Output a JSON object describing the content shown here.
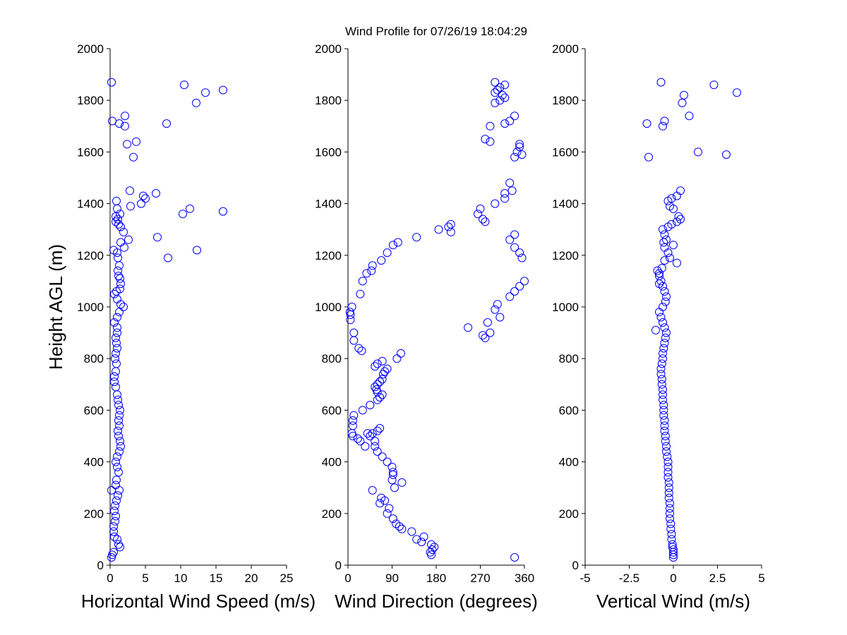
{
  "title": "Wind Profile for  07/26/19 18:04:29",
  "shared_ylabel": "Height AGL (m)",
  "marker_color": "#0000ff",
  "chart_data": [
    {
      "type": "scatter",
      "xlabel": "Horizontal Wind Speed (m/s)",
      "ylabel": "Height AGL (m)",
      "xlim": [
        0,
        25
      ],
      "ylim": [
        0,
        2000
      ],
      "xticks": [
        0,
        5,
        10,
        15,
        20,
        25
      ],
      "xtick_labels": [
        "0",
        "5",
        "10",
        "15",
        "20",
        "25"
      ],
      "yticks": [
        0,
        200,
        400,
        600,
        800,
        1000,
        1200,
        1400,
        1600,
        1800,
        2000
      ],
      "ytick_labels": [
        "0",
        "200",
        "400",
        "600",
        "800",
        "1000",
        "1200",
        "1400",
        "1600",
        "1800",
        "2000"
      ],
      "grid": false,
      "x": [
        0.2,
        0.3,
        0.5,
        1.4,
        1.2,
        1.0,
        0.6,
        0.5,
        0.5,
        0.7,
        0.8,
        0.6,
        0.7,
        0.9,
        1.1,
        1.3,
        0.8,
        0.2,
        0.9,
        1.2,
        1.0,
        0.8,
        1.0,
        1.3,
        1.5,
        1.4,
        1.2,
        1.1,
        1.3,
        1.2,
        1.3,
        1.4,
        1.2,
        1.1,
        1.0,
        0.8,
        0.6,
        0.6,
        0.8,
        0.9,
        0.7,
        0.8,
        1.0,
        0.9,
        0.8,
        1.0,
        1.0,
        0.6,
        1.0,
        1.3,
        1.9,
        1.5,
        1.0,
        0.6,
        0.9,
        1.4,
        1.5,
        1.4,
        1.2,
        1.1,
        1.3,
        1.1,
        1.0,
        0.5,
        2.0,
        1.5,
        2.6,
        6.7,
        1.9,
        1.5,
        1.2,
        0.8,
        1.1,
        0.8,
        1.4,
        1.0,
        2.9,
        4.4,
        5.0,
        4.7,
        6.5,
        2.8,
        0.9,
        2.4,
        3.7,
        2.1,
        3.3,
        8.0,
        1.3,
        0.3,
        2.1,
        12.2,
        13.5,
        16.0,
        10.5,
        0.2,
        8.2,
        12.3,
        10.3,
        16.0,
        11.3
      ],
      "y": [
        30,
        40,
        50,
        70,
        80,
        100,
        110,
        130,
        150,
        170,
        190,
        210,
        230,
        250,
        270,
        290,
        310,
        290,
        330,
        360,
        380,
        400,
        420,
        440,
        460,
        480,
        500,
        520,
        540,
        560,
        580,
        600,
        620,
        640,
        660,
        690,
        710,
        730,
        750,
        780,
        800,
        820,
        840,
        860,
        880,
        900,
        920,
        940,
        960,
        980,
        1000,
        1010,
        1030,
        1050,
        1060,
        1070,
        1090,
        1110,
        1120,
        1140,
        1160,
        1190,
        1210,
        1220,
        1230,
        1250,
        1260,
        1270,
        1290,
        1310,
        1320,
        1330,
        1340,
        1350,
        1360,
        1380,
        1390,
        1400,
        1420,
        1430,
        1440,
        1450,
        1410,
        1630,
        1640,
        1740,
        1580,
        1710,
        1710,
        1720,
        1700,
        1790,
        1830,
        1840,
        1860,
        1870,
        1190,
        1220,
        1360,
        1370,
        1380
      ]
    },
    {
      "type": "scatter",
      "xlabel": "Wind Direction (degrees)",
      "ylabel": "",
      "xlim": [
        0,
        360
      ],
      "ylim": [
        0,
        2000
      ],
      "xticks": [
        0,
        90,
        180,
        270,
        360
      ],
      "xtick_labels": [
        "0",
        "90",
        "180",
        "270",
        "360"
      ],
      "yticks": [
        0,
        200,
        400,
        600,
        800,
        1000,
        1200,
        1400,
        1600,
        1800,
        2000
      ],
      "ytick_labels": [
        "0",
        "200",
        "400",
        "600",
        "800",
        "1000",
        "1200",
        "1400",
        "1600",
        "1800",
        "2000"
      ],
      "grid": false,
      "x": [
        340,
        170,
        168,
        172,
        176,
        170,
        150,
        155,
        140,
        130,
        110,
        105,
        98,
        92,
        80,
        84,
        75,
        68,
        65,
        50,
        95,
        110,
        90,
        92,
        92,
        90,
        80,
        70,
        60,
        55,
        55,
        45,
        50,
        60,
        65,
        40,
        35,
        25,
        20,
        10,
        8,
        10,
        10,
        12,
        30,
        45,
        60,
        65,
        70,
        60,
        58,
        55,
        60,
        65,
        70,
        72,
        75,
        80,
        55,
        60,
        70,
        100,
        108,
        28,
        22,
        12,
        12,
        5,
        5,
        4,
        8,
        25,
        30,
        38,
        48,
        50,
        68,
        80,
        92,
        102,
        140,
        210,
        185,
        205,
        210,
        280,
        275,
        265,
        270,
        300,
        320,
        320,
        335,
        330,
        340,
        355,
        345,
        350,
        350,
        290,
        280,
        290,
        320,
        330,
        340,
        300,
        310,
        320,
        315,
        300,
        305,
        310,
        320,
        300,
        280,
        275,
        290,
        245,
        285,
        310,
        300,
        305,
        330,
        340,
        350,
        360,
        355,
        350,
        340,
        330,
        340
      ],
      "y": [
        30,
        40,
        50,
        60,
        70,
        80,
        90,
        110,
        100,
        130,
        140,
        150,
        160,
        180,
        200,
        220,
        250,
        260,
        240,
        290,
        300,
        320,
        330,
        350,
        360,
        380,
        400,
        420,
        440,
        460,
        480,
        500,
        510,
        520,
        530,
        510,
        460,
        480,
        490,
        500,
        510,
        540,
        560,
        580,
        600,
        620,
        640,
        650,
        660,
        670,
        680,
        690,
        700,
        710,
        720,
        740,
        750,
        760,
        770,
        780,
        790,
        800,
        820,
        830,
        840,
        870,
        900,
        950,
        970,
        980,
        1000,
        1050,
        1100,
        1130,
        1140,
        1160,
        1180,
        1210,
        1240,
        1250,
        1270,
        1290,
        1300,
        1310,
        1320,
        1330,
        1340,
        1360,
        1380,
        1400,
        1420,
        1440,
        1450,
        1480,
        1580,
        1590,
        1600,
        1620,
        1630,
        1640,
        1650,
        1700,
        1710,
        1720,
        1740,
        1790,
        1800,
        1810,
        1820,
        1830,
        1840,
        1850,
        1860,
        1870,
        880,
        890,
        900,
        920,
        940,
        960,
        990,
        1010,
        1040,
        1060,
        1080,
        1100,
        1190,
        1210,
        1230,
        1260,
        1280
      ],
      "x_extra": [],
      "y_extra": []
    },
    {
      "type": "scatter",
      "xlabel": "Vertical Wind (m/s)",
      "ylabel": "",
      "xlim": [
        -5,
        5
      ],
      "ylim": [
        0,
        2000
      ],
      "xticks": [
        -5,
        -2.5,
        0,
        2.5,
        5
      ],
      "xtick_labels": [
        "-5",
        "-2.5",
        "0",
        "2.5",
        "5"
      ],
      "yticks": [
        0,
        200,
        400,
        600,
        800,
        1000,
        1200,
        1400,
        1600,
        1800,
        2000
      ],
      "ytick_labels": [
        "0",
        "200",
        "400",
        "600",
        "800",
        "1000",
        "1200",
        "1400",
        "1600",
        "1800",
        "2000"
      ],
      "grid": false,
      "x": [
        0.0,
        0.0,
        0.0,
        0.0,
        -0.05,
        -0.05,
        -0.1,
        -0.1,
        -0.15,
        -0.15,
        -0.2,
        -0.2,
        -0.2,
        -0.2,
        -0.25,
        -0.25,
        -0.25,
        -0.25,
        -0.3,
        -0.3,
        -0.3,
        -0.3,
        -0.35,
        -0.4,
        -0.4,
        -0.45,
        -0.45,
        -0.5,
        -0.5,
        -0.5,
        -0.55,
        -0.55,
        -0.55,
        -0.6,
        -0.6,
        -0.6,
        -0.65,
        -0.65,
        -0.7,
        -0.7,
        -0.65,
        -0.6,
        -0.6,
        -0.55,
        -0.5,
        -0.45,
        -0.4,
        -0.5,
        -0.6,
        -0.7,
        -0.8,
        -0.6,
        -0.45,
        -0.4,
        -0.5,
        -0.6,
        -0.7,
        -0.8,
        -0.9,
        -0.8,
        -1.0,
        -0.8,
        -0.65,
        -0.5,
        0.2,
        -0.2,
        -0.3,
        0.0,
        -0.4,
        -0.5,
        -0.6,
        -0.55,
        -0.5,
        -0.3,
        -0.1,
        0.2,
        0.4,
        0.3,
        0.0,
        -0.2,
        -0.3,
        -0.1,
        0.2,
        0.4,
        -1.4,
        -1.5,
        -0.6,
        -0.5,
        0.9,
        1.4,
        3.0,
        0.5,
        3.6,
        0.6,
        2.3,
        -0.7
      ],
      "y": [
        30,
        40,
        50,
        60,
        70,
        80,
        100,
        120,
        140,
        160,
        180,
        200,
        220,
        240,
        260,
        280,
        300,
        320,
        340,
        360,
        380,
        400,
        420,
        440,
        460,
        480,
        500,
        520,
        540,
        560,
        580,
        600,
        620,
        640,
        660,
        680,
        700,
        720,
        740,
        760,
        780,
        800,
        820,
        840,
        860,
        880,
        900,
        920,
        940,
        960,
        980,
        1000,
        1020,
        1040,
        1060,
        1080,
        1100,
        1120,
        1140,
        1090,
        910,
        1130,
        1150,
        1180,
        1170,
        1190,
        1210,
        1240,
        1260,
        1280,
        1300,
        1250,
        1230,
        1310,
        1320,
        1330,
        1340,
        1350,
        1380,
        1390,
        1410,
        1420,
        1430,
        1450,
        1580,
        1710,
        1700,
        1720,
        1740,
        1600,
        1590,
        1790,
        1830,
        1820,
        1860,
        1870
      ]
    }
  ]
}
